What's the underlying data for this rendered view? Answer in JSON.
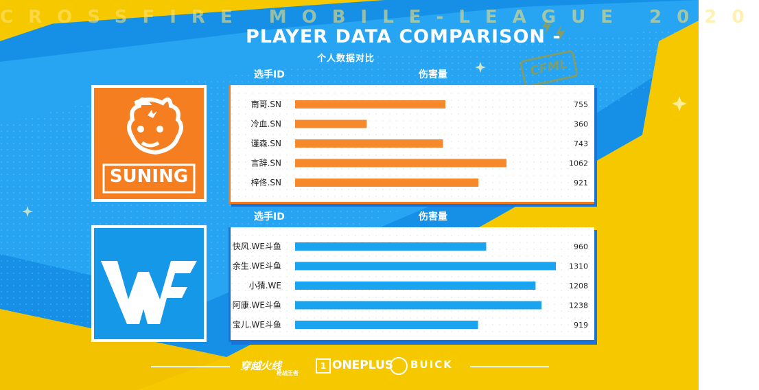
{
  "banner": {
    "league": "CROSSFIRE MOBILE-LEAGUE 2020"
  },
  "header": {
    "title": "PLAYER DATA COMPARISON -",
    "subtitle": "个人数据对比"
  },
  "columns": {
    "player_id": "选手ID",
    "damage": "伤害量"
  },
  "teams": [
    {
      "name": "SUNING",
      "color": "#f57f20"
    },
    {
      "name": "WE",
      "color": "#1598e8"
    }
  ],
  "badge": "CFML",
  "footer": {
    "sponsors": [
      "穿越火线",
      "枪战王者",
      "ONEPLUS",
      "BUICK"
    ]
  },
  "chart_data": [
    {
      "type": "bar",
      "orientation": "horizontal",
      "team": "SUNING",
      "categories": [
        "南哥.SN",
        "冷血.SN",
        "谨森.SN",
        "言辞.SN",
        "梓佟.SN"
      ],
      "values": [
        755,
        360,
        743,
        1062,
        921
      ],
      "color": "#f5892c",
      "xlim": [
        0,
        1310
      ]
    },
    {
      "type": "bar",
      "orientation": "horizontal",
      "team": "WE",
      "categories": [
        "快风.WE斗鱼",
        "余生.WE斗鱼",
        "小猜.WE",
        "阿康.WE斗鱼",
        "宝儿.WE斗鱼"
      ],
      "values": [
        960,
        1310,
        1208,
        1238,
        919
      ],
      "color": "#1aa3ef",
      "xlim": [
        0,
        1310
      ]
    }
  ]
}
